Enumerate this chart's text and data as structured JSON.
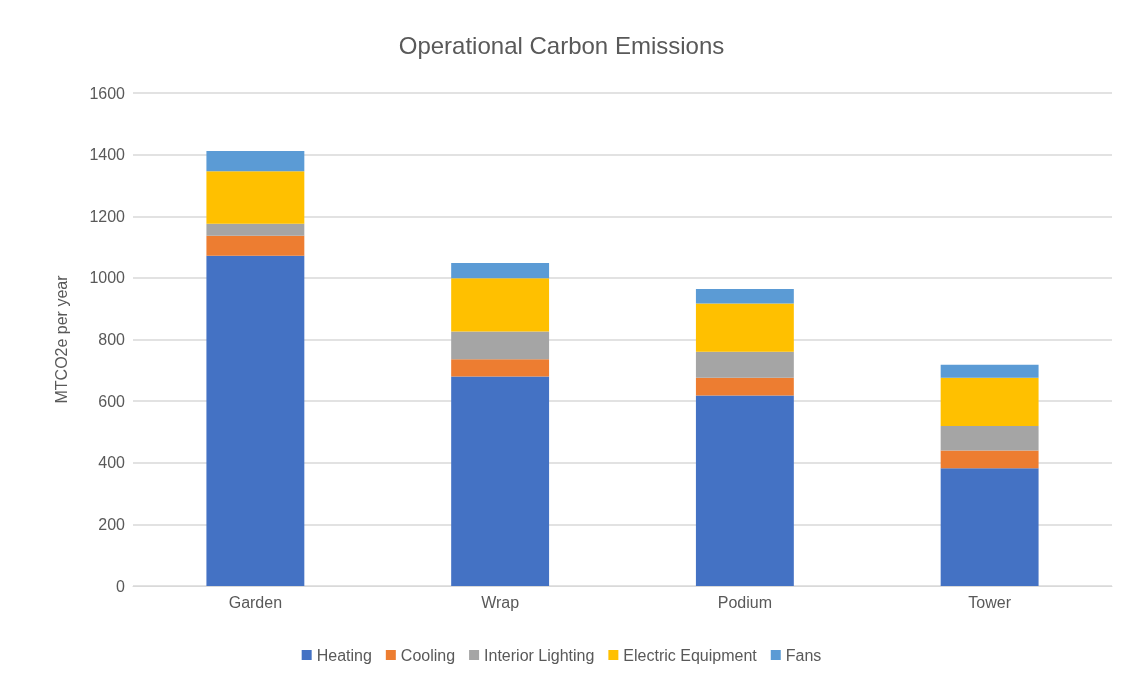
{
  "chart_data": {
    "type": "bar",
    "title": "Operational Carbon Emissions",
    "ylabel": "MTCO2e per year",
    "categories": [
      "Garden",
      "Wrap",
      "Podium",
      "Tower"
    ],
    "stacked": true,
    "series": [
      {
        "name": "Heating",
        "color": "#4472c4",
        "values": [
          1072,
          680,
          618,
          382
        ]
      },
      {
        "name": "Cooling",
        "color": "#ed7d31",
        "values": [
          65,
          56,
          58,
          58
        ]
      },
      {
        "name": "Interior Lighting",
        "color": "#a5a5a5",
        "values": [
          39,
          90,
          84,
          79
        ]
      },
      {
        "name": "Electric Equipment",
        "color": "#ffc000",
        "values": [
          170,
          173,
          157,
          157
        ]
      },
      {
        "name": "Fans",
        "color": "#5b9bd5",
        "values": [
          66,
          49,
          47,
          42
        ]
      }
    ],
    "ylim": [
      0,
      1600
    ],
    "yticks": [
      0,
      200,
      400,
      600,
      800,
      1000,
      1200,
      1400,
      1600
    ],
    "grid": "y",
    "legend": "bottom"
  }
}
